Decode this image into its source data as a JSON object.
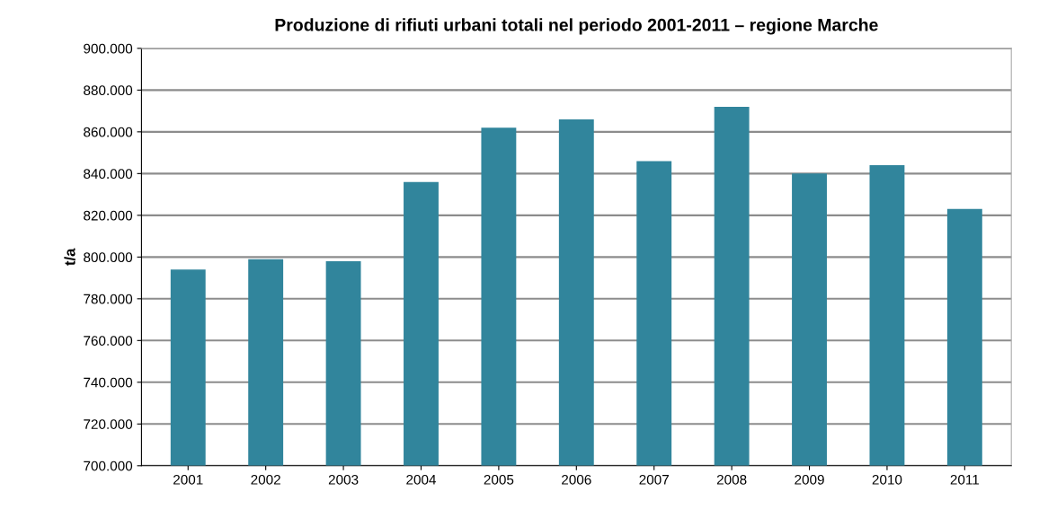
{
  "chart_data": {
    "type": "bar",
    "title": "Produzione di rifiuti urbani totali nel periodo 2001-2011 – regione Marche",
    "ylabel": "t/a",
    "categories": [
      "2001",
      "2002",
      "2003",
      "2004",
      "2005",
      "2006",
      "2007",
      "2008",
      "2009",
      "2010",
      "2011"
    ],
    "values": [
      794000,
      799000,
      798000,
      836000,
      862000,
      866000,
      846000,
      872000,
      840000,
      844000,
      823000
    ],
    "color": "#31859c",
    "ylim": [
      700000,
      900000
    ],
    "yticks": [
      {
        "value": 700000,
        "label": "700.000"
      },
      {
        "value": 720000,
        "label": "720.000"
      },
      {
        "value": 740000,
        "label": "740.000"
      },
      {
        "value": 760000,
        "label": "760.000"
      },
      {
        "value": 780000,
        "label": "780.000"
      },
      {
        "value": 800000,
        "label": "800.000"
      },
      {
        "value": 820000,
        "label": "820.000"
      },
      {
        "value": 840000,
        "label": "840.000"
      },
      {
        "value": 860000,
        "label": "860.000"
      },
      {
        "value": 880000,
        "label": "880.000"
      },
      {
        "value": 900000,
        "label": "900.000"
      }
    ],
    "grid": "y",
    "legend": false
  }
}
